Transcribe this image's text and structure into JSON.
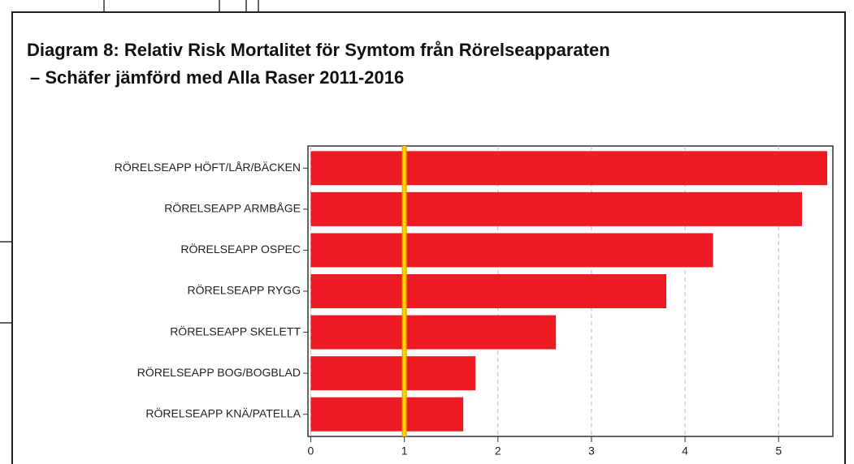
{
  "chart_data": {
    "type": "barh",
    "title": "Diagram 8: Relativ Risk Mortalitet för Symtom från Rörelseapparaten",
    "subtitle": "– Schäfer jämförd med Alla Raser 2011-2016",
    "categories": [
      "RÖRELSEAPP HÖFT/LÅR/BÄCKEN",
      "RÖRELSEAPP ARMBÅGE",
      "RÖRELSEAPP OSPEC",
      "RÖRELSEAPP RYGG",
      "RÖRELSEAPP SKELETT",
      "RÖRELSEAPP BOG/BOGBLAD",
      "RÖRELSEAPP KNÄ/PATELLA"
    ],
    "values": [
      5.52,
      5.25,
      4.3,
      3.8,
      2.62,
      1.76,
      1.63
    ],
    "color": "#ed1c24",
    "xlim": [
      -0.03,
      5.58
    ],
    "xticks": [
      0,
      1,
      2,
      3,
      4,
      5
    ],
    "grid": true,
    "reference_line": {
      "value": 1,
      "color": "#ffd700"
    }
  }
}
